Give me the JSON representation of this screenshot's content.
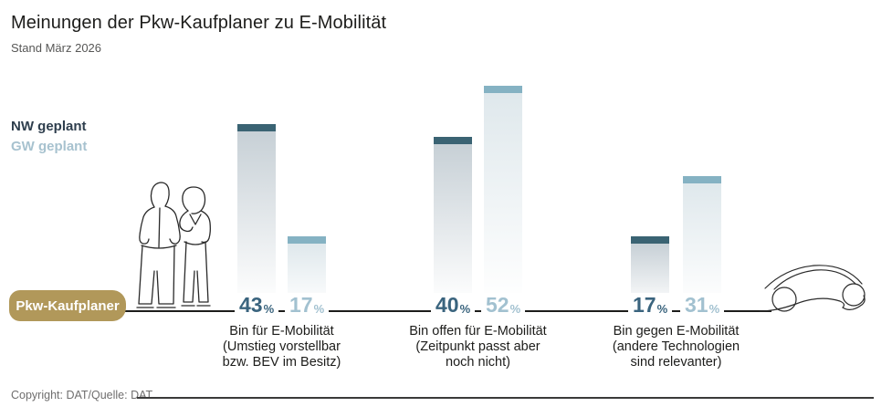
{
  "header": {
    "title": "Meinungen der Pkw-Kaufplaner zu E-Mobilität",
    "subtitle": "Stand März 2026"
  },
  "legend": {
    "items": [
      {
        "label": "NW geplant",
        "color": "#2e3e4d"
      },
      {
        "label": "GW geplant",
        "color": "#a7c2cf"
      }
    ]
  },
  "badge": {
    "label": "Pkw-Kaufplaner",
    "bg_color": "#b1985a",
    "text_color": "#ffffff"
  },
  "footer": {
    "copyright": "Copyright: DAT/Quelle: DAT"
  },
  "chart_data": {
    "type": "bar",
    "title": "Meinungen der Pkw-Kaufplaner zu E-Mobilität",
    "subtitle": "Stand März 2026",
    "unit": "%",
    "value_suffix": "%",
    "categories": [
      "Bin für E-Mobilität (Umstieg vorstellbar bzw. BEV im Besitz)",
      "Bin offen für E-Mobilität (Zeitpunkt passt aber noch nicht)",
      "Bin gegen E-Mobilität (andere Technologien sind relevanter)"
    ],
    "category_lines": [
      [
        "Bin für E-Mobilität",
        "(Umstieg vorstellbar",
        "bzw. BEV im Besitz)"
      ],
      [
        "Bin offen für E-Mobilität",
        "(Zeitpunkt passt aber",
        "noch nicht)"
      ],
      [
        "Bin gegen E-Mobilität",
        "(andere Technologien",
        "sind relevanter)"
      ]
    ],
    "series": [
      {
        "name": "NW geplant",
        "values": [
          43,
          40,
          17
        ],
        "cap_color": "#3a6373",
        "body_top_color": "#c7d0d6",
        "value_color": "#3a647e"
      },
      {
        "name": "GW geplant",
        "values": [
          17,
          52,
          31
        ],
        "cap_color": "#85b2c3",
        "body_top_color": "#dfe8ec",
        "value_color": "#a2c1d0"
      }
    ],
    "ylim": [
      0,
      55
    ],
    "grid": false,
    "legend_position": "upper-left",
    "axis_group_label": "Pkw-Kaufplaner",
    "source": "Copyright: DAT/Quelle: DAT",
    "illustrations": [
      "two-people-sketch",
      "car-sketch"
    ]
  }
}
